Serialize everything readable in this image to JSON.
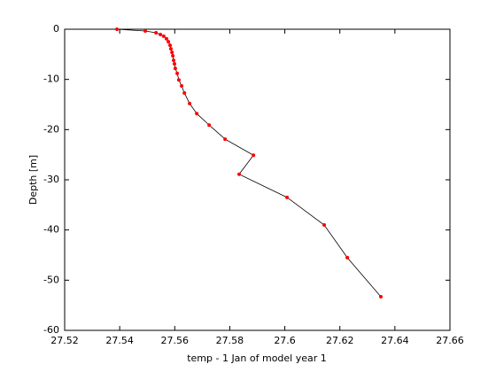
{
  "chart_data": {
    "type": "line",
    "xlabel": "temp - 1 Jan of model year 1",
    "ylabel": "Depth [m]",
    "x": [
      27.539,
      27.5493,
      27.5532,
      27.5548,
      27.556,
      27.557,
      27.5577,
      27.5583,
      27.5586,
      27.559,
      27.5593,
      27.5596,
      27.5599,
      27.5602,
      27.5609,
      27.5615,
      27.5625,
      27.5635,
      27.5654,
      27.568,
      27.5725,
      27.5783,
      27.5886,
      27.5834,
      27.6008,
      27.6143,
      27.6227,
      27.6349
    ],
    "series": [
      {
        "color": "#000000",
        "marker_color": "#ff0000",
        "values": [
          0,
          -0.35,
          -0.7,
          -1.06,
          -1.4,
          -1.9,
          -2.5,
          -3.2,
          -3.9,
          -4.6,
          -5.3,
          -6.2,
          -6.9,
          -7.8,
          -8.8,
          -10.1,
          -11.3,
          -12.7,
          -14.8,
          -16.8,
          -19.1,
          -21.9,
          -25.1,
          -28.9,
          -33.5,
          -39,
          -45.5,
          -53.3
        ]
      }
    ],
    "xlim": [
      27.52,
      27.66
    ],
    "xticks": [
      27.52,
      27.54,
      27.56,
      27.58,
      27.6,
      27.62,
      27.64,
      27.66
    ],
    "ylim": [
      -60,
      0
    ],
    "yticks": [
      -60,
      -50,
      -40,
      -30,
      -20,
      -10,
      0
    ],
    "grid": false
  }
}
